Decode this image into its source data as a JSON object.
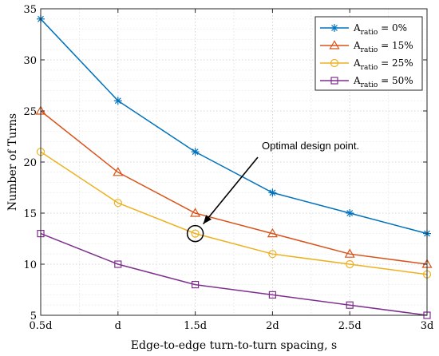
{
  "chart_data": {
    "type": "line",
    "title": "",
    "xlabel": "Edge-to-edge turn-to-turn spacing, s",
    "ylabel": "Number of Turns",
    "categories": [
      "0.5d",
      "d",
      "1.5d",
      "2d",
      "2.5d",
      "3d"
    ],
    "ylim": [
      5,
      35
    ],
    "yticks": [
      "5",
      "10",
      "15",
      "20",
      "25",
      "30",
      "35"
    ],
    "grid": true,
    "legend_position": "top-right",
    "series": [
      {
        "legend_main": "A",
        "legend_sub": "ratio",
        "legend_suffix": " = 0%",
        "color": "#0072BD",
        "marker": "asterisk",
        "values": [
          34,
          26,
          21,
          17,
          15,
          13
        ]
      },
      {
        "legend_main": "A",
        "legend_sub": "ratio",
        "legend_suffix": " = 15%",
        "color": "#D95319",
        "marker": "triangle",
        "values": [
          25,
          19,
          15,
          13,
          11,
          10
        ]
      },
      {
        "legend_main": "A",
        "legend_sub": "ratio",
        "legend_suffix": " = 25%",
        "color": "#EDB120",
        "marker": "circle",
        "values": [
          21,
          16,
          13,
          11,
          10,
          9
        ]
      },
      {
        "legend_main": "A",
        "legend_sub": "ratio",
        "legend_suffix": " = 50%",
        "color": "#7E2F8E",
        "marker": "square",
        "values": [
          13,
          10,
          8,
          7,
          6,
          5
        ]
      }
    ],
    "annotation": {
      "text": "Optimal design point.",
      "x_index": 2,
      "y": 13
    }
  }
}
